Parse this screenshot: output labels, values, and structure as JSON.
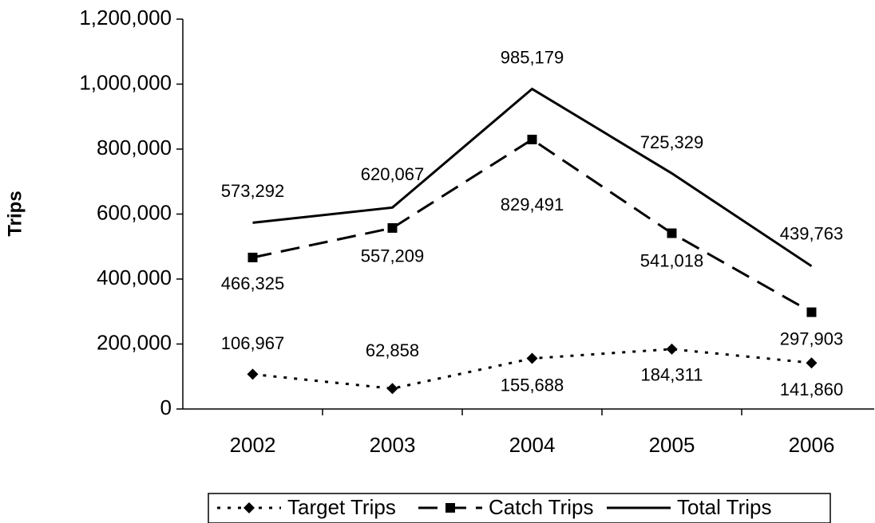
{
  "chart_data": {
    "type": "line",
    "y_label": "Trips",
    "categories": [
      "2002",
      "2003",
      "2004",
      "2005",
      "2006"
    ],
    "series": [
      {
        "name": "Target Trips",
        "color": "#000000",
        "line_style": "dotted",
        "marker": "diamond",
        "values": [
          106967,
          62858,
          155688,
          184311,
          141860
        ],
        "value_labels": [
          "106,967",
          "62,858",
          "155,688",
          "184,311",
          "141,860"
        ]
      },
      {
        "name": "Catch Trips",
        "color": "#000000",
        "line_style": "dashed",
        "marker": "square",
        "values": [
          466325,
          557209,
          829491,
          541018,
          297903
        ],
        "value_labels": [
          "466,325",
          "557,209",
          "829,491",
          "541,018",
          "297,903"
        ]
      },
      {
        "name": "Total Trips",
        "color": "#000000",
        "line_style": "solid",
        "marker": "none",
        "values": [
          573292,
          620067,
          985179,
          725329,
          439763
        ],
        "value_labels": [
          "573,292",
          "620,067",
          "985,179",
          "725,329",
          "439,763"
        ]
      }
    ],
    "ylim": [
      0,
      1200000
    ],
    "yticks": [
      0,
      {
        "value": 200000,
        "label": "200,000"
      },
      {
        "value": 400000,
        "label": "400,000"
      },
      {
        "value": 600000,
        "label": "600,000"
      },
      {
        "value": 800000,
        "label": "800,000"
      },
      {
        "value": 1000000,
        "label": "1,000,000"
      },
      {
        "value": 1200000,
        "label": "1,200,000"
      }
    ],
    "legend": "bottom"
  }
}
